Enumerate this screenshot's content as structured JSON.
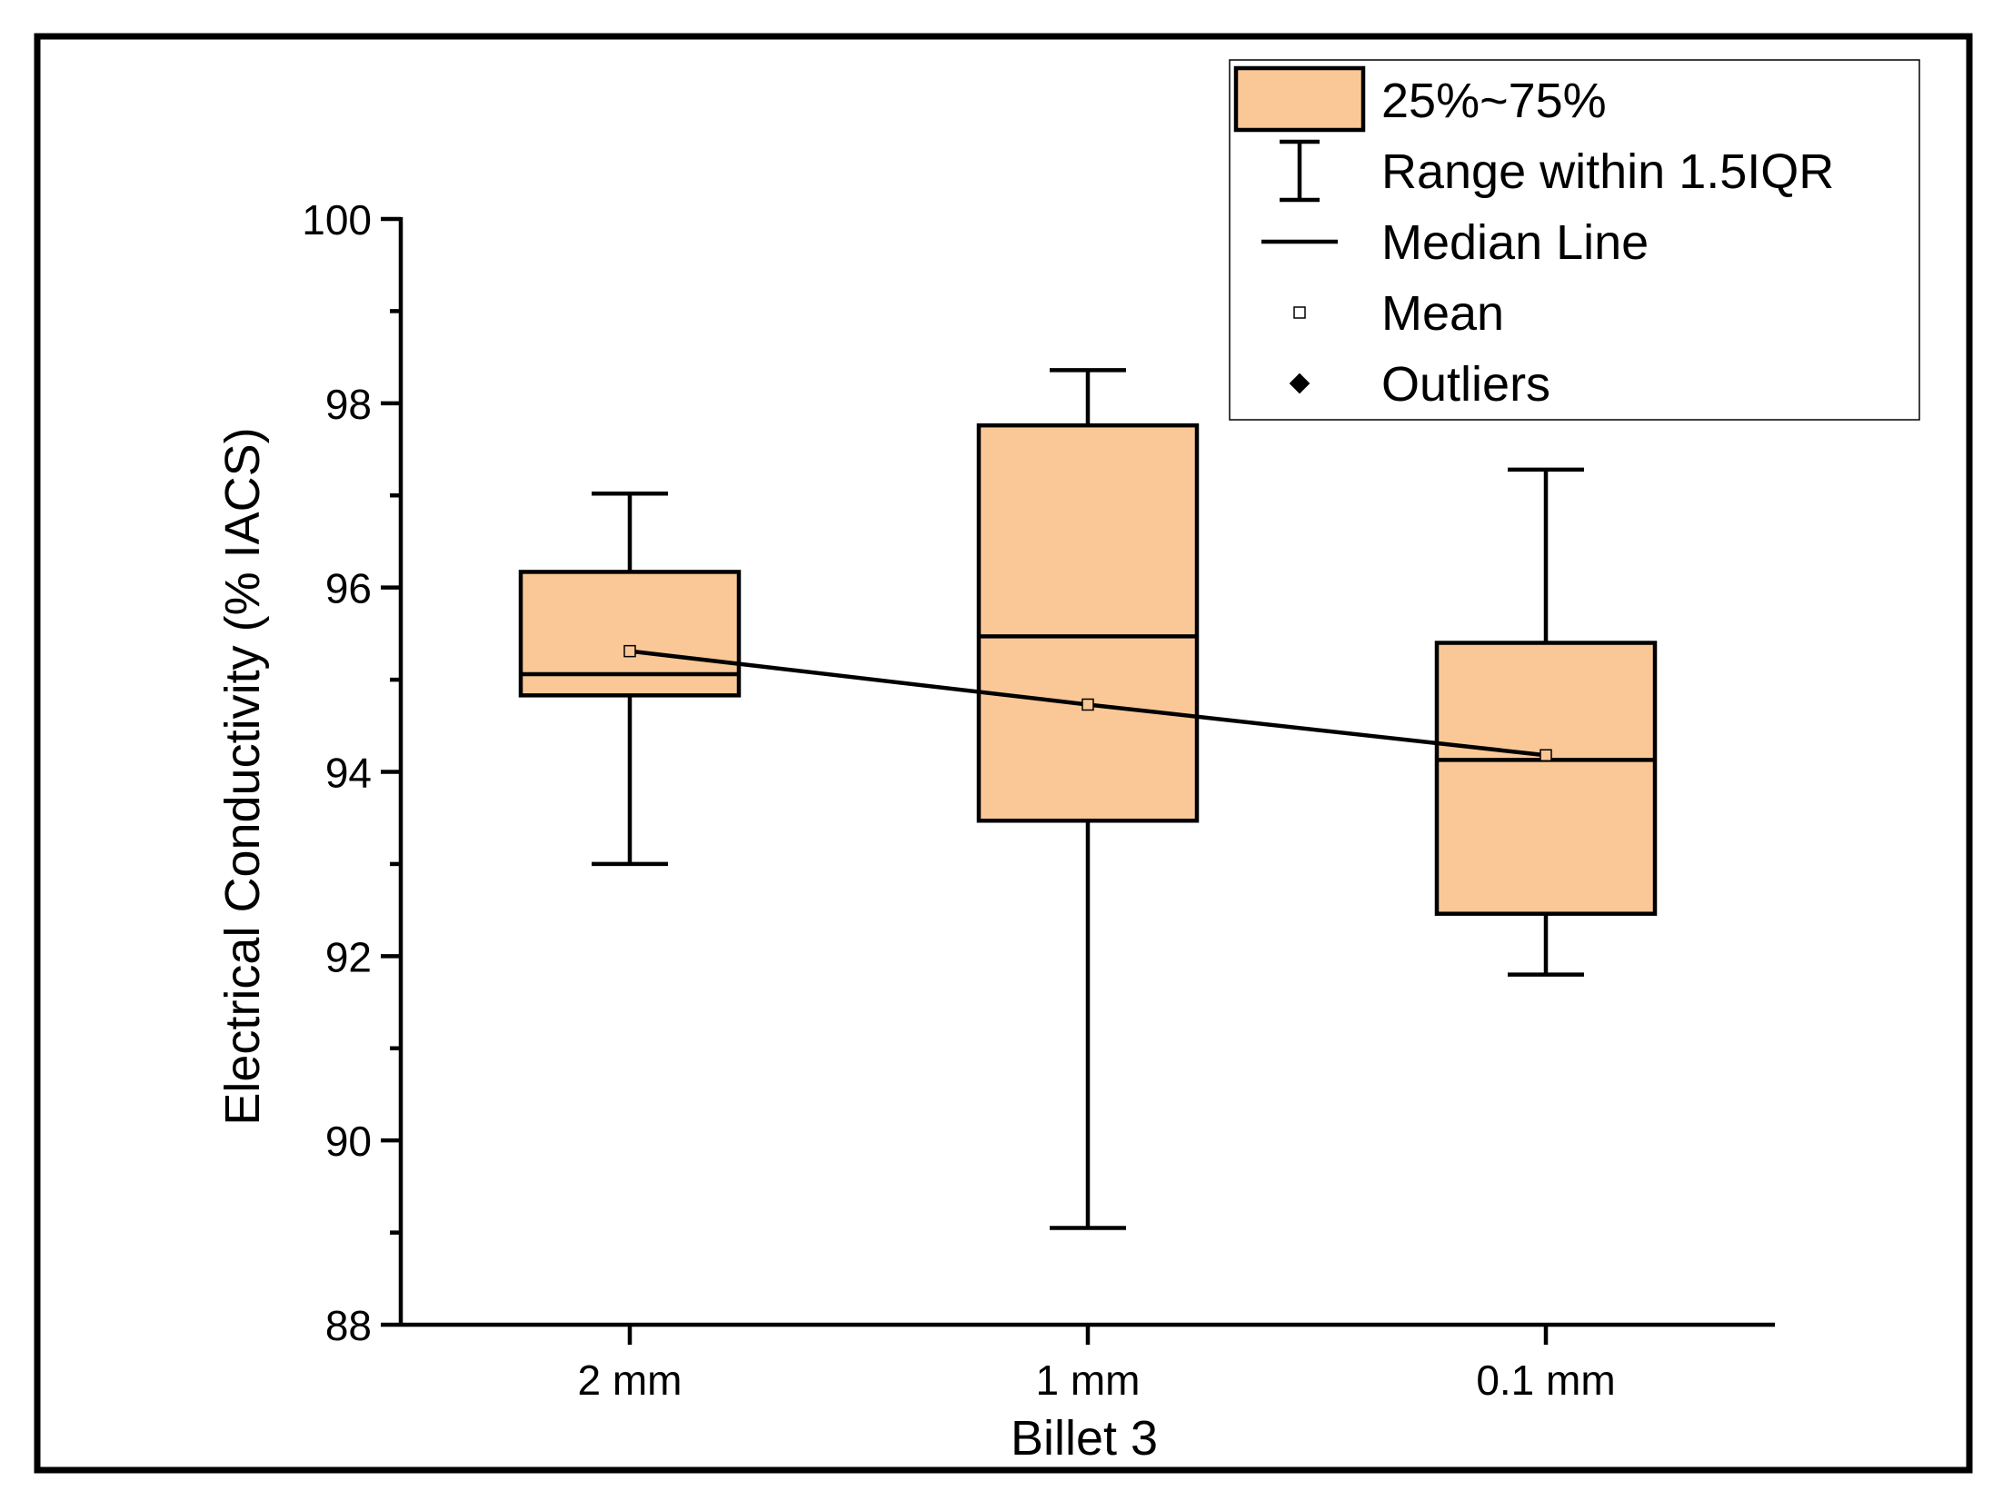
{
  "chart_data": {
    "type": "box",
    "title": "",
    "xlabel": "Billet 3",
    "ylabel": "Electrical Conductivity (% IACS)",
    "ylim": [
      88,
      100
    ],
    "yticks": [
      88,
      90,
      92,
      94,
      96,
      98,
      100
    ],
    "categories": [
      "2 mm",
      "1 mm",
      "0.1 mm"
    ],
    "boxes": [
      {
        "category": "2 mm",
        "whisker_low": 93.0,
        "q1": 94.83,
        "median": 95.06,
        "q3": 96.17,
        "whisker_high": 97.02,
        "mean": 95.31
      },
      {
        "category": "1 mm",
        "whisker_low": 89.05,
        "q1": 93.47,
        "median": 95.47,
        "q3": 97.76,
        "whisker_high": 98.36,
        "mean": 94.73
      },
      {
        "category": "0.1 mm",
        "whisker_low": 91.8,
        "q1": 92.46,
        "median": 94.13,
        "q3": 95.4,
        "whisker_high": 97.28,
        "mean": 94.18
      }
    ],
    "mean_line": true,
    "grid": false,
    "legend_position": "top-right",
    "legend": [
      {
        "key": "box",
        "label": "25%~75%"
      },
      {
        "key": "whisker",
        "label": "Range within 1.5IQR"
      },
      {
        "key": "median",
        "label": "Median Line"
      },
      {
        "key": "mean",
        "label": "Mean"
      },
      {
        "key": "outlier",
        "label": "Outliers"
      }
    ],
    "colors": {
      "box_fill": "#FAC896",
      "stroke": "#000000",
      "background": "#FFFFFF"
    }
  }
}
